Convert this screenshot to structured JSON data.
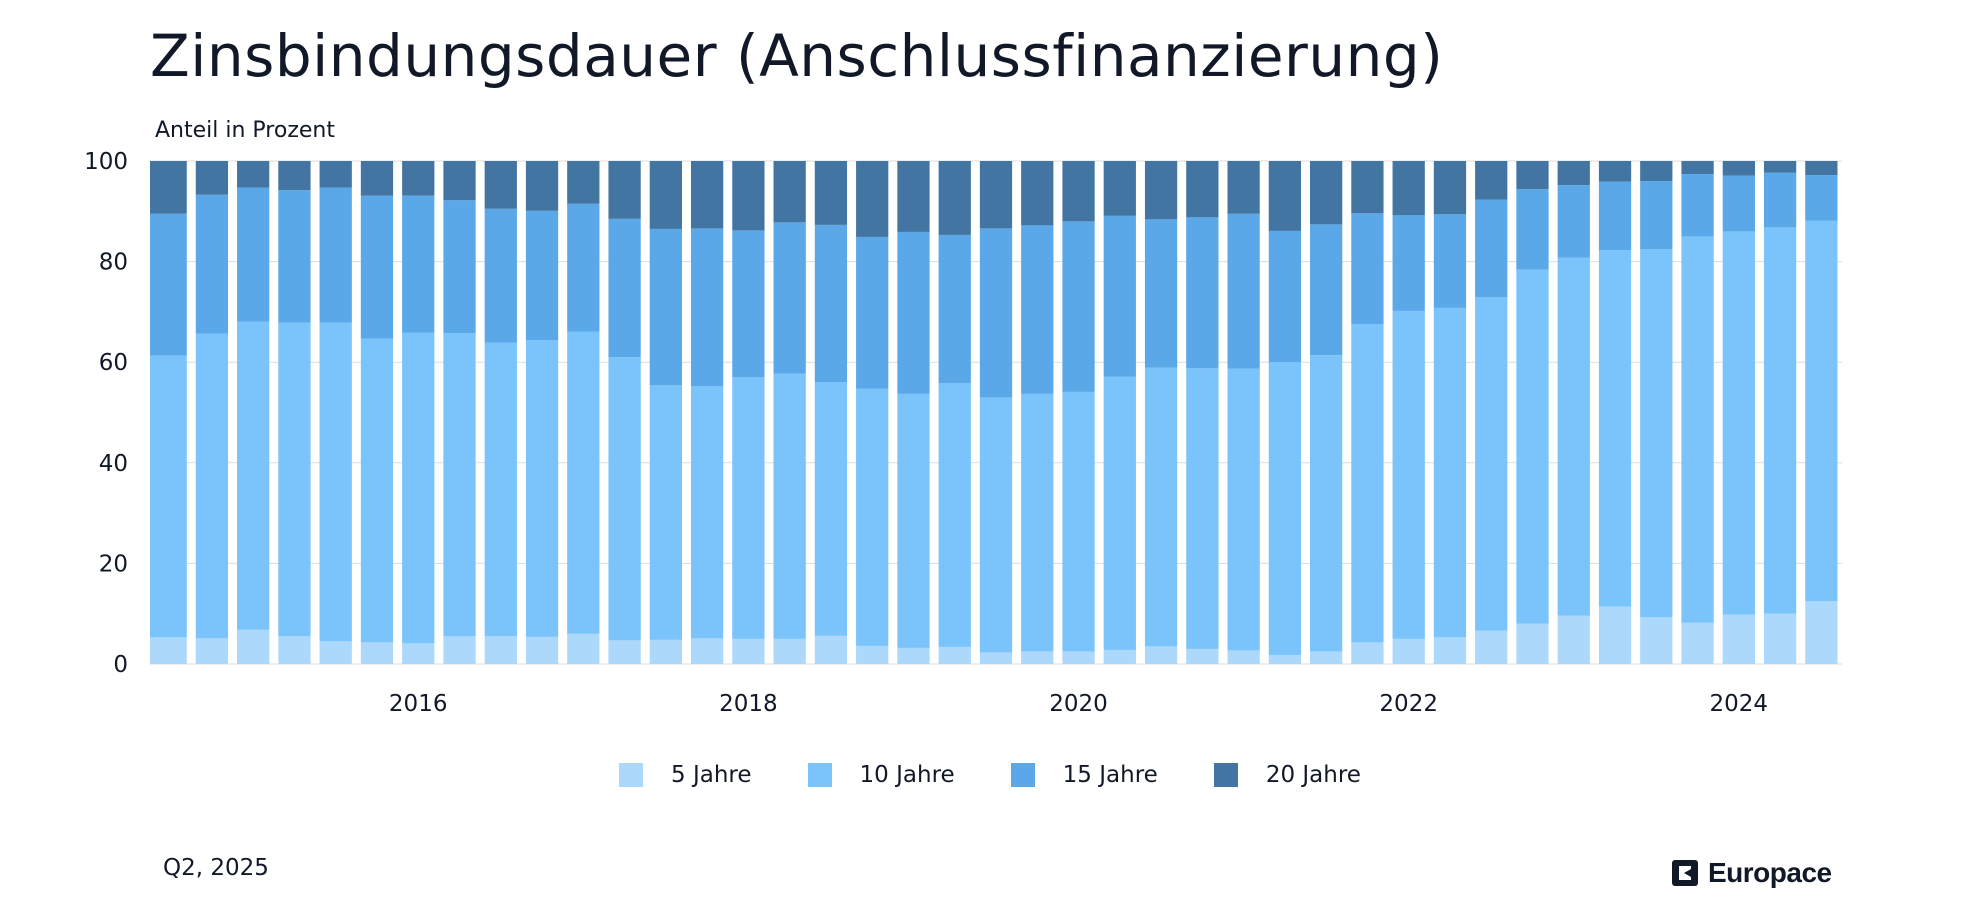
{
  "header": {
    "title": "Zinsbindungsdauer (Anschlussfinanzierung)"
  },
  "footer": {
    "date": "Q2, 2025"
  },
  "brand": {
    "name": "Europace",
    "logo_icon": "europace-logo-icon"
  },
  "colors": {
    "5y": "#acd8fc",
    "10y": "#7ac3fb",
    "15y": "#5aa8e8",
    "20y": "#4375a3",
    "grid": "#d9dde3"
  },
  "chart_data": {
    "type": "bar",
    "stacked": true,
    "ylabel": "Anteil in Prozent",
    "ylim": [
      0,
      100
    ],
    "yticks": [
      0,
      20,
      40,
      60,
      80,
      100
    ],
    "x_tick_labels": [
      "2016",
      "2018",
      "2020",
      "2022",
      "2024"
    ],
    "grid": true,
    "legend_position": "bottom",
    "categories": [
      "2014-Q4",
      "2015-Q1",
      "2015-Q2",
      "2015-Q3",
      "2015-Q4",
      "2016-Q1",
      "2016-Q2",
      "2016-Q3",
      "2016-Q4",
      "2017-Q1",
      "2017-Q2",
      "2017-Q3",
      "2017-Q4",
      "2018-Q1",
      "2018-Q2",
      "2018-Q3",
      "2018-Q4",
      "2019-Q1",
      "2019-Q2",
      "2019-Q3",
      "2019-Q4",
      "2020-Q1",
      "2020-Q2",
      "2020-Q3",
      "2020-Q4",
      "2021-Q1",
      "2021-Q2",
      "2021-Q3",
      "2021-Q4",
      "2022-Q1",
      "2022-Q2",
      "2022-Q3",
      "2022-Q4",
      "2023-Q1",
      "2023-Q2",
      "2023-Q3",
      "2023-Q4",
      "2024-Q1",
      "2024-Q2",
      "2024-Q3",
      "2024-Q4"
    ],
    "series": [
      {
        "name": "5 Jahre",
        "values": [
          5.3,
          5.1,
          6.8,
          5.5,
          4.5,
          4.3,
          4.1,
          5.5,
          5.5,
          5.4,
          6.0,
          4.7,
          4.8,
          5.1,
          5.0,
          5.0,
          5.6,
          3.6,
          3.2,
          3.4,
          2.3,
          2.5,
          2.5,
          2.8,
          3.5,
          3.0,
          2.7,
          1.8,
          2.5,
          4.3,
          5.0,
          5.3,
          6.6,
          8.0,
          9.6,
          11.4,
          9.3,
          8.2,
          9.8,
          10.0,
          12.5
        ]
      },
      {
        "name": "10 Jahre",
        "values": [
          56.0,
          60.6,
          61.3,
          62.4,
          63.4,
          60.4,
          61.8,
          60.3,
          58.4,
          59.0,
          60.1,
          56.3,
          50.6,
          50.1,
          52.0,
          52.7,
          50.4,
          51.1,
          50.5,
          52.4,
          50.7,
          51.2,
          51.6,
          54.3,
          55.4,
          55.8,
          56.0,
          58.2,
          58.9,
          63.3,
          65.2,
          65.5,
          66.3,
          70.4,
          71.2,
          70.9,
          73.2,
          76.8,
          76.2,
          76.8,
          75.6
        ]
      },
      {
        "name": "15 Jahre",
        "values": [
          28.2,
          27.6,
          26.6,
          26.3,
          26.8,
          28.4,
          27.2,
          26.4,
          26.6,
          25.7,
          25.4,
          27.5,
          31.1,
          31.4,
          29.2,
          30.1,
          31.3,
          30.2,
          32.2,
          29.5,
          33.6,
          33.5,
          33.9,
          32.0,
          29.5,
          30.0,
          30.8,
          26.1,
          26.0,
          22.0,
          19.0,
          18.6,
          19.4,
          16.0,
          14.4,
          13.6,
          13.5,
          12.4,
          11.1,
          10.9,
          9.1
        ]
      },
      {
        "name": "20 Jahre",
        "values": [
          10.5,
          6.7,
          5.3,
          5.8,
          5.3,
          6.9,
          6.9,
          7.8,
          9.5,
          9.9,
          8.5,
          11.5,
          13.5,
          13.4,
          13.8,
          12.2,
          12.7,
          15.1,
          14.1,
          14.7,
          13.4,
          12.8,
          12.0,
          10.9,
          11.6,
          11.2,
          10.5,
          13.9,
          12.6,
          10.4,
          10.8,
          10.6,
          7.7,
          5.6,
          4.8,
          4.1,
          4.0,
          2.6,
          2.9,
          2.3,
          2.8
        ]
      }
    ]
  }
}
